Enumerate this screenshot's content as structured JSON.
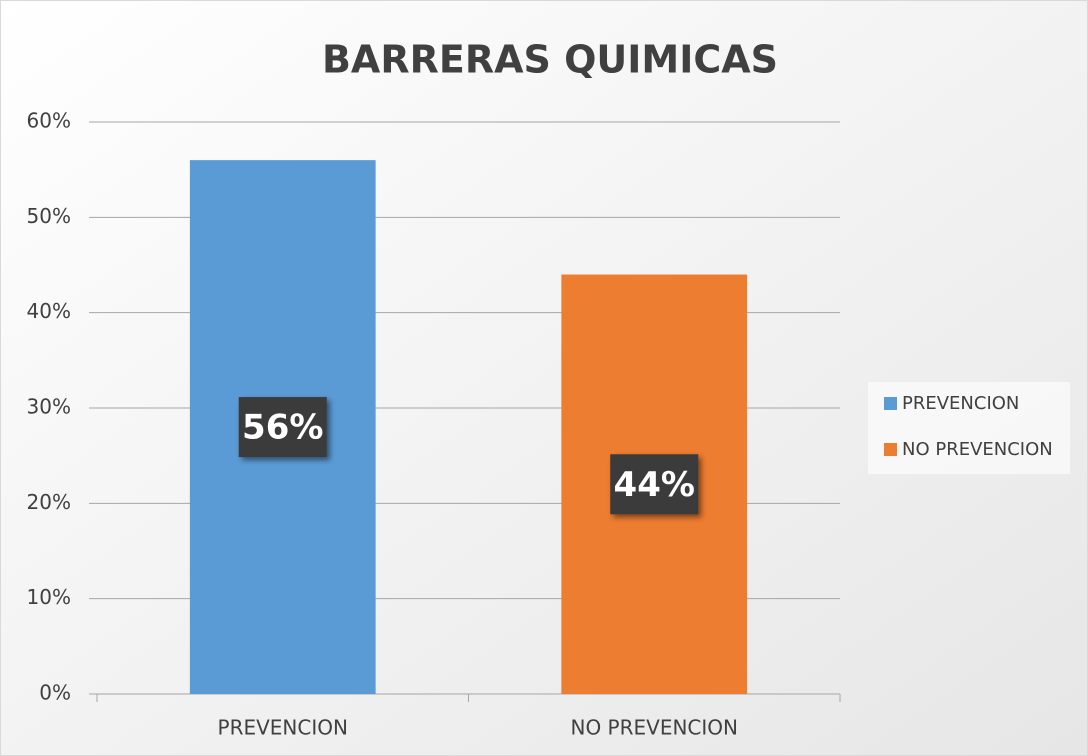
{
  "chart_data": {
    "type": "bar",
    "title": "BARRERAS QUIMICAS",
    "categories": [
      "PREVENCION",
      "NO PREVENCION"
    ],
    "values": [
      56,
      44
    ],
    "value_labels": [
      "56%",
      "44%"
    ],
    "colors": [
      "#5b9bd5",
      "#ed7d31"
    ],
    "ylim": [
      0,
      60
    ],
    "yticks": [
      {
        "value": 0,
        "label": "0%"
      },
      {
        "value": 10,
        "label": "10%"
      },
      {
        "value": 20,
        "label": "20%"
      },
      {
        "value": 30,
        "label": "30%"
      },
      {
        "value": 40,
        "label": "40%"
      },
      {
        "value": 50,
        "label": "50%"
      },
      {
        "value": 60,
        "label": "60%"
      }
    ],
    "grid": true,
    "legend": "right"
  }
}
